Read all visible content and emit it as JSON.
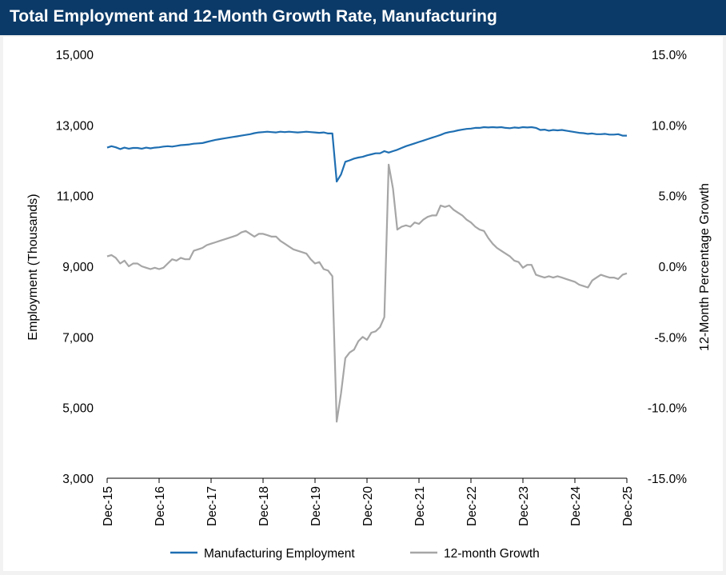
{
  "chart_data": {
    "type": "line",
    "title": "Total Employment and 12-Month Growth Rate, Manufacturing",
    "ylabel": "Employment (Thousands)",
    "y2label": "12-Month Percentage Growth",
    "ylim": [
      3000,
      15000
    ],
    "y2lim": [
      -15.0,
      15.0
    ],
    "x_ticks": [
      "Dec-15",
      "Dec-16",
      "Dec-17",
      "Dec-18",
      "Dec-19",
      "Dec-20",
      "Dec-21",
      "Dec-22",
      "Dec-23",
      "Dec-24",
      "Dec-25"
    ],
    "y_ticks": [
      "3,000",
      "5,000",
      "7,000",
      "9,000",
      "11,000",
      "13,000",
      "15,000"
    ],
    "y2_ticks": [
      "-15.0%",
      "-10.0%",
      "-5.0%",
      "0.0%",
      "5.0%",
      "10.0%",
      "15.0%"
    ],
    "x_start": "Dec-15",
    "x_unit": "months since Dec-15",
    "series": [
      {
        "name": "Manufacturing Employment",
        "axis": "left",
        "color": "#1f6fb2",
        "points": [
          [
            0,
            12360
          ],
          [
            1,
            12400
          ],
          [
            2,
            12370
          ],
          [
            3,
            12320
          ],
          [
            4,
            12360
          ],
          [
            5,
            12330
          ],
          [
            6,
            12350
          ],
          [
            7,
            12350
          ],
          [
            8,
            12330
          ],
          [
            9,
            12360
          ],
          [
            10,
            12340
          ],
          [
            11,
            12360
          ],
          [
            12,
            12370
          ],
          [
            13,
            12390
          ],
          [
            14,
            12400
          ],
          [
            15,
            12390
          ],
          [
            16,
            12410
          ],
          [
            17,
            12430
          ],
          [
            18,
            12440
          ],
          [
            19,
            12450
          ],
          [
            20,
            12470
          ],
          [
            21,
            12480
          ],
          [
            22,
            12490
          ],
          [
            23,
            12520
          ],
          [
            24,
            12550
          ],
          [
            25,
            12580
          ],
          [
            26,
            12600
          ],
          [
            27,
            12620
          ],
          [
            28,
            12640
          ],
          [
            29,
            12660
          ],
          [
            30,
            12680
          ],
          [
            31,
            12700
          ],
          [
            32,
            12720
          ],
          [
            33,
            12740
          ],
          [
            34,
            12770
          ],
          [
            35,
            12790
          ],
          [
            36,
            12800
          ],
          [
            37,
            12810
          ],
          [
            38,
            12800
          ],
          [
            39,
            12790
          ],
          [
            40,
            12810
          ],
          [
            41,
            12800
          ],
          [
            42,
            12810
          ],
          [
            43,
            12800
          ],
          [
            44,
            12790
          ],
          [
            45,
            12800
          ],
          [
            46,
            12810
          ],
          [
            47,
            12800
          ],
          [
            48,
            12790
          ],
          [
            49,
            12780
          ],
          [
            50,
            12790
          ],
          [
            51,
            12760
          ],
          [
            52,
            12760
          ],
          [
            53,
            11400
          ],
          [
            54,
            11600
          ],
          [
            55,
            11960
          ],
          [
            56,
            12000
          ],
          [
            57,
            12050
          ],
          [
            58,
            12080
          ],
          [
            59,
            12100
          ],
          [
            60,
            12140
          ],
          [
            61,
            12170
          ],
          [
            62,
            12200
          ],
          [
            63,
            12200
          ],
          [
            64,
            12260
          ],
          [
            65,
            12220
          ],
          [
            66,
            12260
          ],
          [
            67,
            12300
          ],
          [
            68,
            12350
          ],
          [
            69,
            12400
          ],
          [
            70,
            12440
          ],
          [
            71,
            12480
          ],
          [
            72,
            12520
          ],
          [
            73,
            12560
          ],
          [
            74,
            12600
          ],
          [
            75,
            12640
          ],
          [
            76,
            12680
          ],
          [
            77,
            12720
          ],
          [
            78,
            12770
          ],
          [
            79,
            12800
          ],
          [
            80,
            12820
          ],
          [
            81,
            12850
          ],
          [
            82,
            12870
          ],
          [
            83,
            12890
          ],
          [
            84,
            12900
          ],
          [
            85,
            12920
          ],
          [
            86,
            12920
          ],
          [
            87,
            12940
          ],
          [
            88,
            12930
          ],
          [
            89,
            12940
          ],
          [
            90,
            12930
          ],
          [
            91,
            12940
          ],
          [
            92,
            12920
          ],
          [
            93,
            12910
          ],
          [
            94,
            12930
          ],
          [
            95,
            12920
          ],
          [
            96,
            12940
          ],
          [
            97,
            12930
          ],
          [
            98,
            12940
          ],
          [
            99,
            12920
          ],
          [
            100,
            12860
          ],
          [
            101,
            12870
          ],
          [
            102,
            12840
          ],
          [
            103,
            12860
          ],
          [
            104,
            12850
          ],
          [
            105,
            12860
          ],
          [
            106,
            12840
          ],
          [
            107,
            12820
          ],
          [
            108,
            12800
          ],
          [
            109,
            12780
          ],
          [
            110,
            12770
          ],
          [
            111,
            12750
          ],
          [
            112,
            12760
          ],
          [
            113,
            12740
          ],
          [
            114,
            12740
          ],
          [
            115,
            12750
          ],
          [
            116,
            12730
          ],
          [
            117,
            12730
          ],
          [
            118,
            12740
          ],
          [
            119,
            12700
          ],
          [
            120,
            12700
          ]
        ]
      },
      {
        "name": "12-month Growth",
        "axis": "right",
        "color": "#a6a6a6",
        "points": [
          [
            0,
            0.7
          ],
          [
            1,
            0.8
          ],
          [
            2,
            0.6
          ],
          [
            3,
            0.2
          ],
          [
            4,
            0.4
          ],
          [
            5,
            0.0
          ],
          [
            6,
            0.2
          ],
          [
            7,
            0.2
          ],
          [
            8,
            0.0
          ],
          [
            9,
            -0.1
          ],
          [
            10,
            -0.2
          ],
          [
            11,
            -0.1
          ],
          [
            12,
            -0.2
          ],
          [
            13,
            -0.1
          ],
          [
            14,
            0.2
          ],
          [
            15,
            0.5
          ],
          [
            16,
            0.4
          ],
          [
            17,
            0.6
          ],
          [
            18,
            0.5
          ],
          [
            19,
            0.5
          ],
          [
            20,
            1.1
          ],
          [
            21,
            1.2
          ],
          [
            22,
            1.3
          ],
          [
            23,
            1.5
          ],
          [
            24,
            1.6
          ],
          [
            25,
            1.7
          ],
          [
            26,
            1.8
          ],
          [
            27,
            1.9
          ],
          [
            28,
            2.0
          ],
          [
            29,
            2.1
          ],
          [
            30,
            2.2
          ],
          [
            31,
            2.4
          ],
          [
            32,
            2.5
          ],
          [
            33,
            2.3
          ],
          [
            34,
            2.1
          ],
          [
            35,
            2.3
          ],
          [
            36,
            2.3
          ],
          [
            37,
            2.2
          ],
          [
            38,
            2.1
          ],
          [
            39,
            2.1
          ],
          [
            40,
            1.8
          ],
          [
            41,
            1.6
          ],
          [
            42,
            1.4
          ],
          [
            43,
            1.2
          ],
          [
            44,
            1.1
          ],
          [
            45,
            1.0
          ],
          [
            46,
            0.9
          ],
          [
            47,
            0.5
          ],
          [
            48,
            0.2
          ],
          [
            49,
            0.3
          ],
          [
            50,
            -0.2
          ],
          [
            51,
            -0.3
          ],
          [
            52,
            -0.7
          ],
          [
            53,
            -11.0
          ],
          [
            54,
            -9.0
          ],
          [
            55,
            -6.5
          ],
          [
            56,
            -6.1
          ],
          [
            57,
            -5.9
          ],
          [
            58,
            -5.3
          ],
          [
            59,
            -5.0
          ],
          [
            60,
            -5.2
          ],
          [
            61,
            -4.7
          ],
          [
            62,
            -4.6
          ],
          [
            63,
            -4.3
          ],
          [
            64,
            -3.6
          ],
          [
            65,
            7.2
          ],
          [
            66,
            5.5
          ],
          [
            67,
            2.6
          ],
          [
            68,
            2.8
          ],
          [
            69,
            2.9
          ],
          [
            70,
            2.8
          ],
          [
            71,
            3.1
          ],
          [
            72,
            3.0
          ],
          [
            73,
            3.3
          ],
          [
            74,
            3.5
          ],
          [
            75,
            3.6
          ],
          [
            76,
            3.6
          ],
          [
            77,
            4.3
          ],
          [
            78,
            4.2
          ],
          [
            79,
            4.3
          ],
          [
            80,
            4.0
          ],
          [
            81,
            3.8
          ],
          [
            82,
            3.6
          ],
          [
            83,
            3.3
          ],
          [
            84,
            3.1
          ],
          [
            85,
            2.8
          ],
          [
            86,
            2.6
          ],
          [
            87,
            2.5
          ],
          [
            88,
            2.0
          ],
          [
            89,
            1.6
          ],
          [
            90,
            1.3
          ],
          [
            91,
            1.1
          ],
          [
            92,
            0.9
          ],
          [
            93,
            0.7
          ],
          [
            94,
            0.4
          ],
          [
            95,
            0.3
          ],
          [
            96,
            -0.1
          ],
          [
            97,
            0.1
          ],
          [
            98,
            0.1
          ],
          [
            99,
            -0.6
          ],
          [
            100,
            -0.7
          ],
          [
            101,
            -0.8
          ],
          [
            102,
            -0.7
          ],
          [
            103,
            -0.8
          ],
          [
            104,
            -0.7
          ],
          [
            105,
            -0.8
          ],
          [
            106,
            -0.9
          ],
          [
            107,
            -1.0
          ],
          [
            108,
            -1.1
          ],
          [
            109,
            -1.3
          ],
          [
            110,
            -1.4
          ],
          [
            111,
            -1.5
          ],
          [
            112,
            -1.0
          ],
          [
            113,
            -0.8
          ],
          [
            114,
            -0.6
          ],
          [
            115,
            -0.7
          ],
          [
            116,
            -0.8
          ],
          [
            117,
            -0.8
          ],
          [
            118,
            -0.9
          ],
          [
            119,
            -0.6
          ],
          [
            120,
            -0.5
          ]
        ]
      }
    ],
    "grid": false,
    "legend": "bottom"
  }
}
